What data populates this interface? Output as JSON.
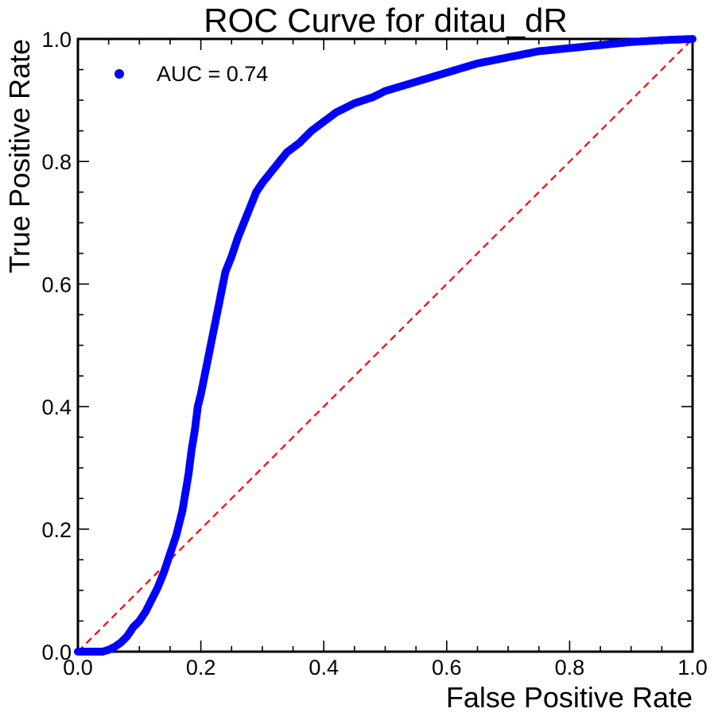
{
  "chart_data": {
    "type": "scatter",
    "title": "ROC Curve for ditau_dR",
    "xlabel": "False Positive Rate",
    "ylabel": "True Positive Rate",
    "xlim": [
      0.0,
      1.0
    ],
    "ylim": [
      0.0,
      1.0
    ],
    "x_ticks": [
      "0.0",
      "0.2",
      "0.4",
      "0.6",
      "0.8",
      "1.0"
    ],
    "y_ticks": [
      "0.0",
      "0.2",
      "0.4",
      "0.6",
      "0.8",
      "1.0"
    ],
    "grid": false,
    "legend_position": "top-left",
    "series": [
      {
        "name": "AUC = 0.74",
        "color": "#0000ff",
        "marker": "circle",
        "points": [
          [
            0.0,
            0.0
          ],
          [
            0.02,
            0.0
          ],
          [
            0.04,
            0.0
          ],
          [
            0.05,
            0.003
          ],
          [
            0.06,
            0.008
          ],
          [
            0.07,
            0.015
          ],
          [
            0.08,
            0.025
          ],
          [
            0.09,
            0.04
          ],
          [
            0.1,
            0.05
          ],
          [
            0.11,
            0.065
          ],
          [
            0.12,
            0.085
          ],
          [
            0.13,
            0.105
          ],
          [
            0.14,
            0.13
          ],
          [
            0.15,
            0.16
          ],
          [
            0.16,
            0.19
          ],
          [
            0.17,
            0.23
          ],
          [
            0.18,
            0.29
          ],
          [
            0.185,
            0.33
          ],
          [
            0.19,
            0.36
          ],
          [
            0.195,
            0.4
          ],
          [
            0.2,
            0.42
          ],
          [
            0.21,
            0.47
          ],
          [
            0.22,
            0.52
          ],
          [
            0.23,
            0.57
          ],
          [
            0.24,
            0.62
          ],
          [
            0.25,
            0.645
          ],
          [
            0.26,
            0.675
          ],
          [
            0.27,
            0.7
          ],
          [
            0.28,
            0.725
          ],
          [
            0.29,
            0.75
          ],
          [
            0.3,
            0.765
          ],
          [
            0.32,
            0.79
          ],
          [
            0.34,
            0.815
          ],
          [
            0.36,
            0.83
          ],
          [
            0.38,
            0.85
          ],
          [
            0.4,
            0.865
          ],
          [
            0.42,
            0.88
          ],
          [
            0.45,
            0.895
          ],
          [
            0.48,
            0.905
          ],
          [
            0.5,
            0.915
          ],
          [
            0.55,
            0.93
          ],
          [
            0.6,
            0.945
          ],
          [
            0.65,
            0.96
          ],
          [
            0.7,
            0.97
          ],
          [
            0.75,
            0.98
          ],
          [
            0.8,
            0.985
          ],
          [
            0.85,
            0.99
          ],
          [
            0.9,
            0.995
          ],
          [
            0.95,
            0.998
          ],
          [
            1.0,
            1.0
          ]
        ]
      },
      {
        "name": "",
        "type": "line",
        "style": "dashed",
        "color": "#ff0000",
        "points": [
          [
            0.0,
            0.0
          ],
          [
            1.0,
            1.0
          ]
        ]
      }
    ]
  }
}
